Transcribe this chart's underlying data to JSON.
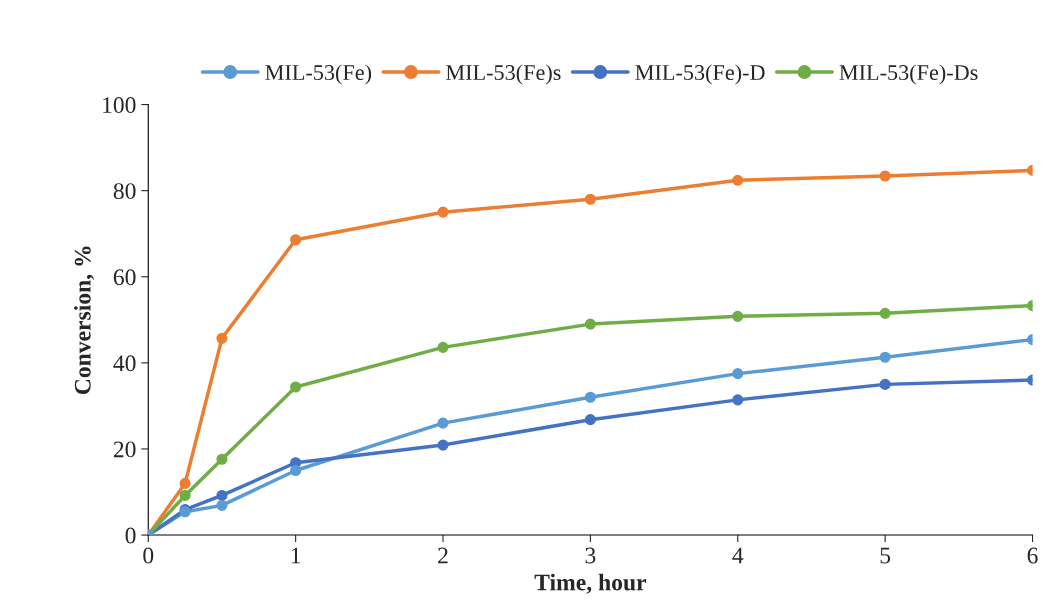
{
  "chart_data": {
    "type": "line",
    "xlabel": "Time, hour",
    "ylabel": "Conversion, %",
    "x": [
      0,
      0.25,
      0.5,
      1,
      2,
      3,
      4,
      5,
      6
    ],
    "series": [
      {
        "name": "MIL-53(Fe)",
        "color": "#5b9bd5",
        "values": [
          0,
          5.4,
          6.9,
          15,
          26,
          32,
          37.5,
          41.3,
          45.4
        ]
      },
      {
        "name": "MIL-53(Fe)s",
        "color": "#ed7d31",
        "values": [
          0,
          12,
          45.7,
          68.6,
          75,
          78,
          82.4,
          83.4,
          84.7
        ]
      },
      {
        "name": "MIL-53(Fe)-D",
        "color": "#4472c4",
        "values": [
          0,
          5.9,
          9.2,
          16.8,
          20.9,
          26.8,
          31.4,
          35,
          36
        ]
      },
      {
        "name": "MIL-53(Fe)-Ds",
        "color": "#70ad47",
        "values": [
          0,
          9.2,
          17.6,
          34.4,
          43.6,
          49,
          50.8,
          51.5,
          53.3
        ]
      }
    ],
    "xlim": [
      0,
      6
    ],
    "xticks": [
      0,
      1,
      2,
      3,
      4,
      5,
      6
    ],
    "ylim": [
      0,
      100
    ],
    "yticks": [
      0,
      20,
      40,
      60,
      80,
      100
    ],
    "grid": false,
    "legend": "top",
    "marker": "circle",
    "line_style": "solid"
  }
}
